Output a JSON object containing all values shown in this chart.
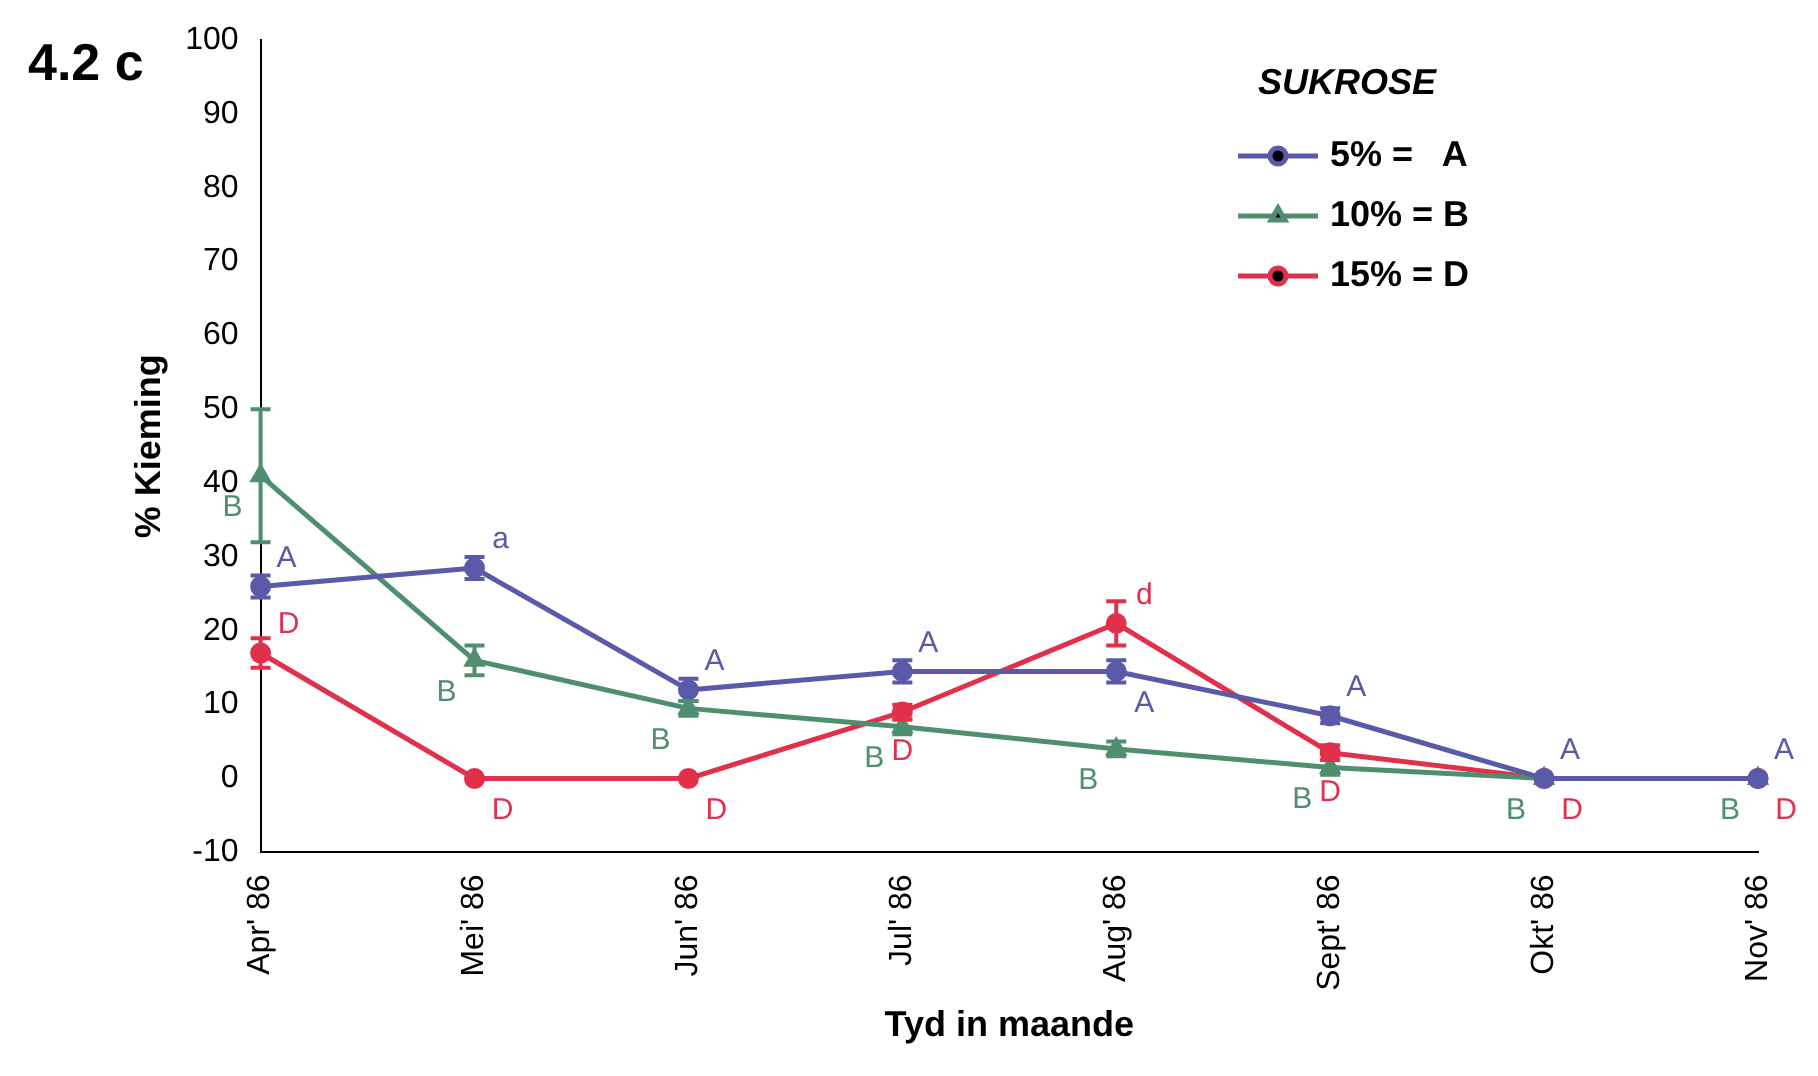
{
  "chart_data": {
    "type": "line",
    "title": "4.2 c",
    "xlabel": "Tyd in maande",
    "ylabel": "% Kieming",
    "legend_title": "SUKROSE",
    "legend": "top right",
    "grid": false,
    "line_style": "solid",
    "categories": [
      "Apr' 86",
      "Mei' 86",
      "Jun' 86",
      "Jul' 86",
      "Aug' 86",
      "Sept' 86",
      "Okt' 86",
      "Nov' 86"
    ],
    "ylim": [
      -10,
      100
    ],
    "yticks": [
      -10,
      0,
      10,
      20,
      30,
      40,
      50,
      60,
      70,
      80,
      90,
      100
    ],
    "series": [
      {
        "name": "5% =   A",
        "color": "#5a5aa8",
        "marker": "circle",
        "values": [
          26,
          28.5,
          12,
          14.5,
          14.5,
          8.5,
          0,
          0
        ],
        "errors": [
          1.5,
          1.5,
          1.5,
          1.5,
          1.5,
          1,
          null,
          null
        ]
      },
      {
        "name": "10% = B",
        "color": "#4f8f6f",
        "marker": "triangle",
        "values": [
          41,
          16,
          9.5,
          7,
          4,
          1.5,
          0,
          0
        ],
        "errors": [
          9,
          2,
          1,
          1,
          1,
          1,
          null,
          null
        ]
      },
      {
        "name": "15% = D",
        "color": "#e0304a",
        "marker": "circle",
        "values": [
          17,
          0,
          0,
          9,
          21,
          3.5,
          0,
          0
        ],
        "errors": [
          2,
          null,
          null,
          1,
          3,
          1,
          null,
          null
        ]
      }
    ],
    "annotations": [
      {
        "text": "A",
        "x": "Apr' 86",
        "y": 26
      },
      {
        "text": "B",
        "x": "Apr' 86",
        "y": 41
      },
      {
        "text": "D",
        "x": "Apr' 86",
        "y": 17
      },
      {
        "text": "a",
        "x": "Mei' 86",
        "y": 28.5
      },
      {
        "text": "B",
        "x": "Mei' 86",
        "y": 16
      },
      {
        "text": "D",
        "x": "Mei' 86",
        "y": 0
      },
      {
        "text": "A",
        "x": "Jun' 86",
        "y": 12
      },
      {
        "text": "B",
        "x": "Jun' 86",
        "y": 9.5
      },
      {
        "text": "D",
        "x": "Jun' 86",
        "y": 0
      },
      {
        "text": "A",
        "x": "Jul' 86",
        "y": 14.5
      },
      {
        "text": "B",
        "x": "Jul' 86",
        "y": 7
      },
      {
        "text": "D",
        "x": "Jul' 86",
        "y": 9
      },
      {
        "text": "A",
        "x": "Aug' 86",
        "y": 14.5
      },
      {
        "text": "B",
        "x": "Aug' 86",
        "y": 4
      },
      {
        "text": "d",
        "x": "Aug' 86",
        "y": 21
      },
      {
        "text": "A",
        "x": "Sept' 86",
        "y": 8.5
      },
      {
        "text": "B",
        "x": "Sept' 86",
        "y": 1.5
      },
      {
        "text": "D",
        "x": "Sept' 86",
        "y": 3.5
      },
      {
        "text": "A",
        "x": "Okt' 86",
        "y": 0
      },
      {
        "text": "B",
        "x": "Okt' 86",
        "y": 0
      },
      {
        "text": "D",
        "x": "Okt' 86",
        "y": 0
      },
      {
        "text": "A",
        "x": "Nov' 86",
        "y": 0
      },
      {
        "text": "B",
        "x": "Nov' 86",
        "y": 0
      },
      {
        "text": "D",
        "x": "Nov' 86",
        "y": 0
      }
    ]
  }
}
